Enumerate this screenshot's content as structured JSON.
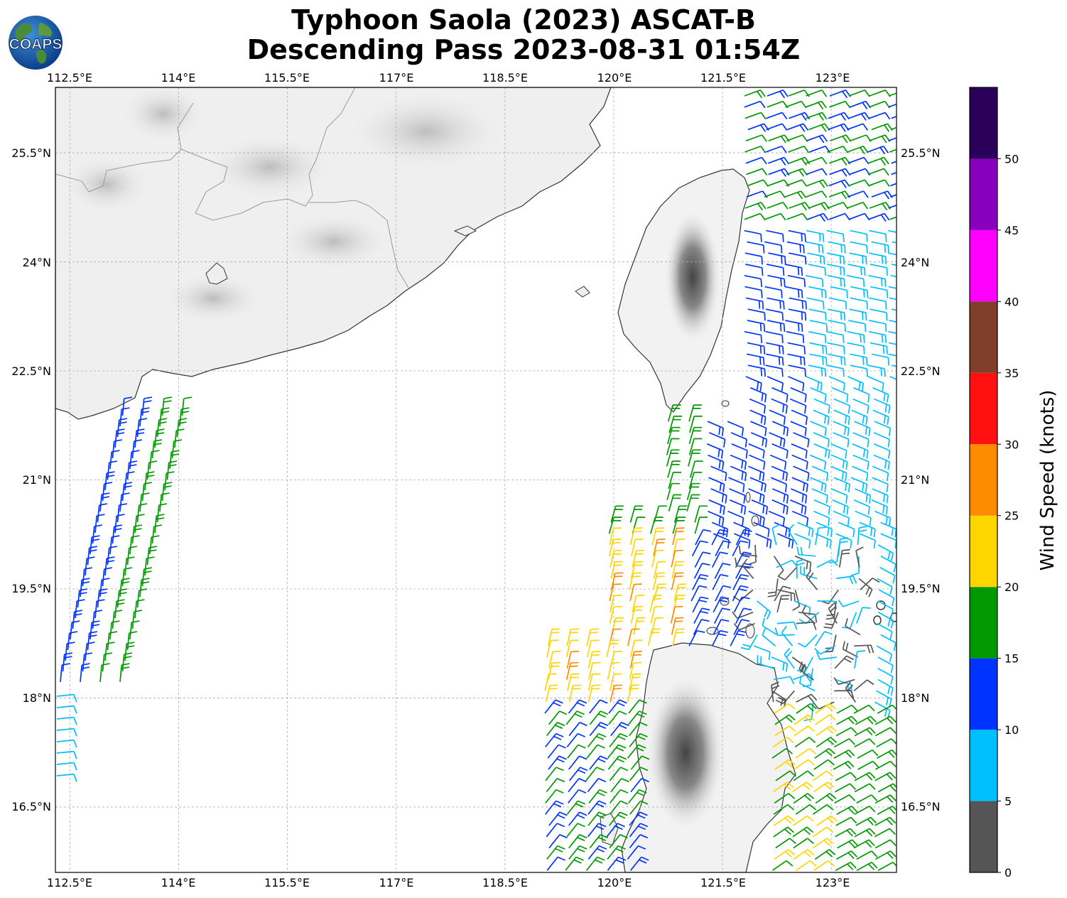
{
  "title": {
    "line1": "Typhoon Saola (2023) ASCAT-B",
    "line2": "Descending Pass 2023-08-31 01:54Z"
  },
  "logo": {
    "text": "COAPS",
    "icon": "globe-icon"
  },
  "map": {
    "lon_range": [
      112.3,
      123.9
    ],
    "lat_range": [
      15.6,
      26.4
    ],
    "lon_ticks": [
      "112.5°E",
      "114°E",
      "115.5°E",
      "117°E",
      "118.5°E",
      "120°E",
      "121.5°E",
      "123°E"
    ],
    "lat_ticks": [
      "25.5°N",
      "24°N",
      "22.5°N",
      "21°N",
      "19.5°N",
      "18°N",
      "16.5°N"
    ],
    "gridlines": true,
    "land_color": "#e8e8e8",
    "coast_color": "#333333"
  },
  "colorbar": {
    "label": "Wind Speed (knots)",
    "ticks": [
      "0",
      "5",
      "10",
      "15",
      "20",
      "25",
      "30",
      "35",
      "40",
      "45",
      "50"
    ],
    "bins": [
      {
        "from": 0,
        "to": 5,
        "color": "#555555"
      },
      {
        "from": 5,
        "to": 10,
        "color": "#00bfff"
      },
      {
        "from": 10,
        "to": 15,
        "color": "#0033ff"
      },
      {
        "from": 15,
        "to": 20,
        "color": "#009900"
      },
      {
        "from": 20,
        "to": 25,
        "color": "#ffd500"
      },
      {
        "from": 25,
        "to": 30,
        "color": "#ff8c00"
      },
      {
        "from": 30,
        "to": 35,
        "color": "#ff1010"
      },
      {
        "from": 35,
        "to": 40,
        "color": "#7f3f2a"
      },
      {
        "from": 40,
        "to": 45,
        "color": "#ff00ff"
      },
      {
        "from": 45,
        "to": 50,
        "color": "#8800bb"
      },
      {
        "from": 50,
        "to": 55,
        "color": "#2a005a"
      }
    ]
  }
}
